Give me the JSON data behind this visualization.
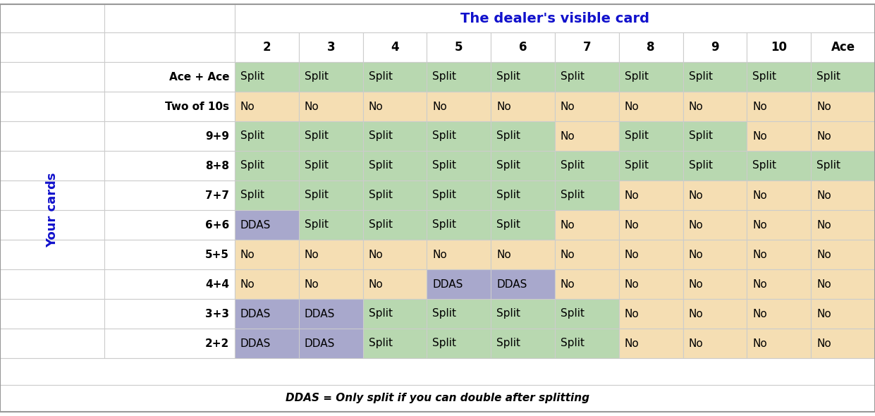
{
  "title": "The dealer's visible card",
  "title_color": "#1111CC",
  "row_label_title": "Your cards",
  "row_label_color": "#1111CC",
  "dealer_cols": [
    "2",
    "3",
    "4",
    "5",
    "6",
    "7",
    "8",
    "9",
    "10",
    "Ace"
  ],
  "row_labels": [
    "Ace + Ace",
    "Two of 10s",
    "9+9",
    "8+8",
    "7+7",
    "6+6",
    "5+5",
    "4+4",
    "3+3",
    "2+2"
  ],
  "table_data": [
    [
      "Split",
      "Split",
      "Split",
      "Split",
      "Split",
      "Split",
      "Split",
      "Split",
      "Split",
      "Split"
    ],
    [
      "No",
      "No",
      "No",
      "No",
      "No",
      "No",
      "No",
      "No",
      "No",
      "No"
    ],
    [
      "Split",
      "Split",
      "Split",
      "Split",
      "Split",
      "No",
      "Split",
      "Split",
      "No",
      "No"
    ],
    [
      "Split",
      "Split",
      "Split",
      "Split",
      "Split",
      "Split",
      "Split",
      "Split",
      "Split",
      "Split"
    ],
    [
      "Split",
      "Split",
      "Split",
      "Split",
      "Split",
      "Split",
      "No",
      "No",
      "No",
      "No"
    ],
    [
      "DDAS",
      "Split",
      "Split",
      "Split",
      "Split",
      "No",
      "No",
      "No",
      "No",
      "No"
    ],
    [
      "No",
      "No",
      "No",
      "No",
      "No",
      "No",
      "No",
      "No",
      "No",
      "No"
    ],
    [
      "No",
      "No",
      "No",
      "DDAS",
      "DDAS",
      "No",
      "No",
      "No",
      "No",
      "No"
    ],
    [
      "DDAS",
      "DDAS",
      "Split",
      "Split",
      "Split",
      "Split",
      "No",
      "No",
      "No",
      "No"
    ],
    [
      "DDAS",
      "DDAS",
      "Split",
      "Split",
      "Split",
      "Split",
      "No",
      "No",
      "No",
      "No"
    ]
  ],
  "cell_colors": [
    [
      "#b8d8b0",
      "#b8d8b0",
      "#b8d8b0",
      "#b8d8b0",
      "#b8d8b0",
      "#b8d8b0",
      "#b8d8b0",
      "#b8d8b0",
      "#b8d8b0",
      "#b8d8b0"
    ],
    [
      "#f5deb3",
      "#f5deb3",
      "#f5deb3",
      "#f5deb3",
      "#f5deb3",
      "#f5deb3",
      "#f5deb3",
      "#f5deb3",
      "#f5deb3",
      "#f5deb3"
    ],
    [
      "#b8d8b0",
      "#b8d8b0",
      "#b8d8b0",
      "#b8d8b0",
      "#b8d8b0",
      "#f5deb3",
      "#b8d8b0",
      "#b8d8b0",
      "#f5deb3",
      "#f5deb3"
    ],
    [
      "#b8d8b0",
      "#b8d8b0",
      "#b8d8b0",
      "#b8d8b0",
      "#b8d8b0",
      "#b8d8b0",
      "#b8d8b0",
      "#b8d8b0",
      "#b8d8b0",
      "#b8d8b0"
    ],
    [
      "#b8d8b0",
      "#b8d8b0",
      "#b8d8b0",
      "#b8d8b0",
      "#b8d8b0",
      "#b8d8b0",
      "#f5deb3",
      "#f5deb3",
      "#f5deb3",
      "#f5deb3"
    ],
    [
      "#a8a8cc",
      "#b8d8b0",
      "#b8d8b0",
      "#b8d8b0",
      "#b8d8b0",
      "#f5deb3",
      "#f5deb3",
      "#f5deb3",
      "#f5deb3",
      "#f5deb3"
    ],
    [
      "#f5deb3",
      "#f5deb3",
      "#f5deb3",
      "#f5deb3",
      "#f5deb3",
      "#f5deb3",
      "#f5deb3",
      "#f5deb3",
      "#f5deb3",
      "#f5deb3"
    ],
    [
      "#f5deb3",
      "#f5deb3",
      "#f5deb3",
      "#a8a8cc",
      "#a8a8cc",
      "#f5deb3",
      "#f5deb3",
      "#f5deb3",
      "#f5deb3",
      "#f5deb3"
    ],
    [
      "#a8a8cc",
      "#a8a8cc",
      "#b8d8b0",
      "#b8d8b0",
      "#b8d8b0",
      "#b8d8b0",
      "#f5deb3",
      "#f5deb3",
      "#f5deb3",
      "#f5deb3"
    ],
    [
      "#a8a8cc",
      "#a8a8cc",
      "#b8d8b0",
      "#b8d8b0",
      "#b8d8b0",
      "#b8d8b0",
      "#f5deb3",
      "#f5deb3",
      "#f5deb3",
      "#f5deb3"
    ]
  ],
  "footnote": "DDAS = Only split if you can double after splitting",
  "bg_color": "#ffffff",
  "figsize": [
    12.41,
    5.9
  ],
  "dpi": 100
}
